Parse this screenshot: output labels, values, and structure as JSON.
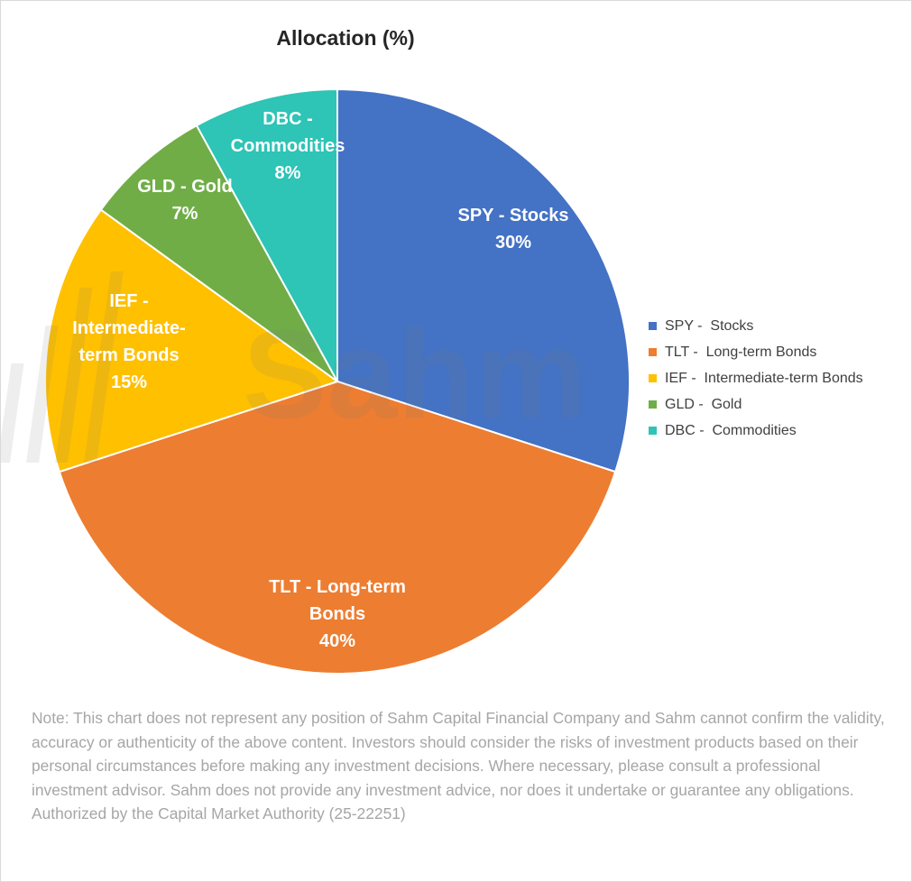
{
  "chart_data": {
    "type": "pie",
    "title": "Allocation (%)",
    "slices": [
      {
        "label": "SPY -  Stocks",
        "chart_label": [
          "SPY -  Stocks"
        ],
        "value": 30,
        "value_label": "30%",
        "color": "#4472C4"
      },
      {
        "label": "TLT -  Long-term Bonds",
        "chart_label": [
          "TLT -  Long-term",
          "Bonds"
        ],
        "value": 40,
        "value_label": "40%",
        "color": "#ED7D31"
      },
      {
        "label": "IEF -  Intermediate-term Bonds",
        "chart_label": [
          "IEF -",
          "Intermediate-",
          "term Bonds"
        ],
        "value": 15,
        "value_label": "15%",
        "color": "#FFC000"
      },
      {
        "label": "GLD -  Gold",
        "chart_label": [
          "GLD -  Gold"
        ],
        "value": 7,
        "value_label": "7%",
        "color": "#70AD47"
      },
      {
        "label": "DBC -  Commodities",
        "chart_label": [
          "DBC -",
          "Commodities"
        ],
        "value": 8,
        "value_label": "8%",
        "color": "#2EC4B6"
      }
    ],
    "legend_position": "right"
  },
  "watermark": {
    "text": "Sahm"
  },
  "note": "Note: This chart does not represent any position of Sahm Capital Financial Company and Sahm cannot confirm the validity, accuracy or authenticity of the above content. Investors should consider the risks of investment products based on their personal circumstances before making any investment decisions. Where necessary, please consult a professional investment advisor. Sahm does not provide any investment advice, nor does it undertake or guarantee any obligations. Authorized by the Capital Market Authority (25-22251)"
}
